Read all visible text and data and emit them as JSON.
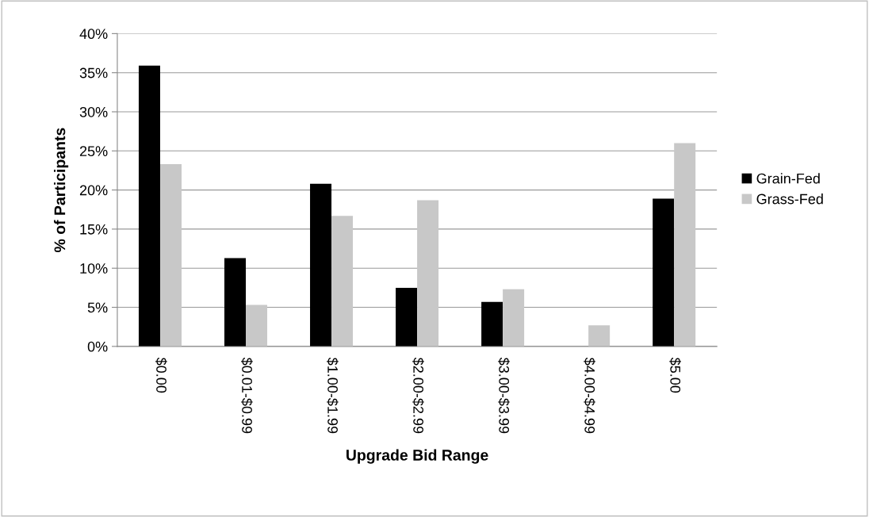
{
  "chart_data": {
    "type": "bar",
    "xlabel": "Upgrade Bid Range",
    "ylabel": "% of Participants",
    "categories": [
      "$0.00",
      "$0.01-$0.99",
      "$1.00-$1.99",
      "$2.00-$2.99",
      "$3.00-$3.99",
      "$4.00-$4.99",
      "$5.00"
    ],
    "series": [
      {
        "name": "Grain-Fed",
        "color": "#000000",
        "values": [
          35.9,
          11.3,
          20.8,
          7.5,
          5.7,
          0,
          18.9
        ]
      },
      {
        "name": "Grass-Fed",
        "color": "#c8c8c8",
        "values": [
          23.3,
          5.3,
          16.7,
          18.7,
          7.3,
          2.7,
          26.0
        ]
      }
    ],
    "ylim": [
      0,
      40
    ],
    "yticks": [
      {
        "value": 0,
        "label": "0%"
      },
      {
        "value": 5,
        "label": "5%"
      },
      {
        "value": 10,
        "label": "10%"
      },
      {
        "value": 15,
        "label": "15%"
      },
      {
        "value": 20,
        "label": "20%"
      },
      {
        "value": 25,
        "label": "25%"
      },
      {
        "value": 30,
        "label": "30%"
      },
      {
        "value": 35,
        "label": "35%"
      },
      {
        "value": 40,
        "label": "40%"
      }
    ],
    "grid": "y",
    "legend": "right"
  }
}
